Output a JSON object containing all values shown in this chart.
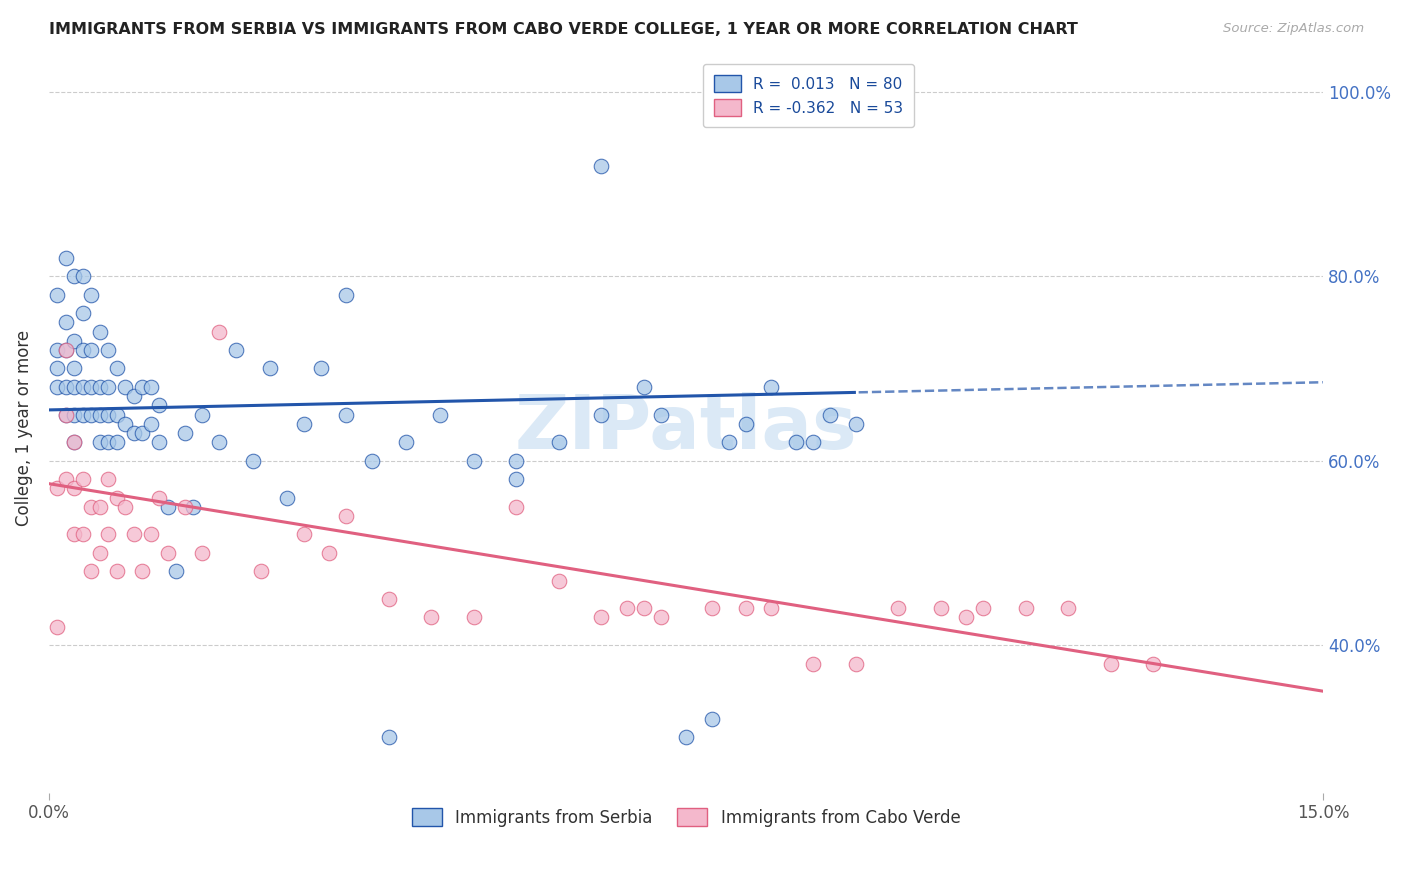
{
  "title": "IMMIGRANTS FROM SERBIA VS IMMIGRANTS FROM CABO VERDE COLLEGE, 1 YEAR OR MORE CORRELATION CHART",
  "source": "Source: ZipAtlas.com",
  "ylabel": "College, 1 year or more",
  "r_serbia": 0.013,
  "n_serbia": 80,
  "r_caboverde": -0.362,
  "n_caboverde": 53,
  "xlim": [
    0.0,
    0.15
  ],
  "ylim": [
    0.24,
    1.03
  ],
  "yticks": [
    0.4,
    0.6,
    0.8,
    1.0
  ],
  "ytick_labels": [
    "40.0%",
    "60.0%",
    "80.0%",
    "100.0%"
  ],
  "color_serbia": "#a8c8e8",
  "color_serbia_line": "#2255aa",
  "color_caboverde": "#f4b8cc",
  "color_caboverde_line": "#e06080",
  "watermark": "ZIPatlas",
  "serbia_x": [
    0.001,
    0.001,
    0.001,
    0.001,
    0.002,
    0.002,
    0.002,
    0.002,
    0.002,
    0.003,
    0.003,
    0.003,
    0.003,
    0.003,
    0.003,
    0.004,
    0.004,
    0.004,
    0.004,
    0.004,
    0.005,
    0.005,
    0.005,
    0.005,
    0.006,
    0.006,
    0.006,
    0.006,
    0.007,
    0.007,
    0.007,
    0.007,
    0.008,
    0.008,
    0.008,
    0.009,
    0.009,
    0.01,
    0.01,
    0.011,
    0.011,
    0.012,
    0.012,
    0.013,
    0.013,
    0.014,
    0.015,
    0.016,
    0.017,
    0.018,
    0.02,
    0.022,
    0.024,
    0.026,
    0.028,
    0.03,
    0.032,
    0.035,
    0.038,
    0.042,
    0.046,
    0.05,
    0.055,
    0.06,
    0.065,
    0.07,
    0.072,
    0.075,
    0.078,
    0.08,
    0.082,
    0.085,
    0.088,
    0.09,
    0.092,
    0.095,
    0.065,
    0.035,
    0.04,
    0.055
  ],
  "serbia_y": [
    0.68,
    0.7,
    0.72,
    0.78,
    0.65,
    0.68,
    0.72,
    0.75,
    0.82,
    0.62,
    0.65,
    0.68,
    0.7,
    0.73,
    0.8,
    0.65,
    0.68,
    0.72,
    0.76,
    0.8,
    0.65,
    0.68,
    0.72,
    0.78,
    0.62,
    0.65,
    0.68,
    0.74,
    0.62,
    0.65,
    0.68,
    0.72,
    0.62,
    0.65,
    0.7,
    0.64,
    0.68,
    0.63,
    0.67,
    0.63,
    0.68,
    0.64,
    0.68,
    0.62,
    0.66,
    0.55,
    0.48,
    0.63,
    0.55,
    0.65,
    0.62,
    0.72,
    0.6,
    0.7,
    0.56,
    0.64,
    0.7,
    0.65,
    0.6,
    0.62,
    0.65,
    0.6,
    0.58,
    0.62,
    0.65,
    0.68,
    0.65,
    0.3,
    0.32,
    0.62,
    0.64,
    0.68,
    0.62,
    0.62,
    0.65,
    0.64,
    0.92,
    0.78,
    0.3,
    0.6
  ],
  "caboverde_x": [
    0.001,
    0.001,
    0.002,
    0.002,
    0.002,
    0.003,
    0.003,
    0.003,
    0.004,
    0.004,
    0.005,
    0.005,
    0.006,
    0.006,
    0.007,
    0.007,
    0.008,
    0.008,
    0.009,
    0.01,
    0.011,
    0.012,
    0.013,
    0.014,
    0.016,
    0.018,
    0.02,
    0.025,
    0.03,
    0.033,
    0.035,
    0.04,
    0.045,
    0.05,
    0.055,
    0.06,
    0.065,
    0.068,
    0.07,
    0.072,
    0.078,
    0.082,
    0.085,
    0.09,
    0.095,
    0.1,
    0.105,
    0.108,
    0.11,
    0.115,
    0.12,
    0.125,
    0.13
  ],
  "caboverde_y": [
    0.57,
    0.42,
    0.72,
    0.65,
    0.58,
    0.57,
    0.62,
    0.52,
    0.58,
    0.52,
    0.55,
    0.48,
    0.55,
    0.5,
    0.58,
    0.52,
    0.56,
    0.48,
    0.55,
    0.52,
    0.48,
    0.52,
    0.56,
    0.5,
    0.55,
    0.5,
    0.74,
    0.48,
    0.52,
    0.5,
    0.54,
    0.45,
    0.43,
    0.43,
    0.55,
    0.47,
    0.43,
    0.44,
    0.44,
    0.43,
    0.44,
    0.44,
    0.44,
    0.38,
    0.38,
    0.44,
    0.44,
    0.43,
    0.44,
    0.44,
    0.44,
    0.38,
    0.38
  ]
}
